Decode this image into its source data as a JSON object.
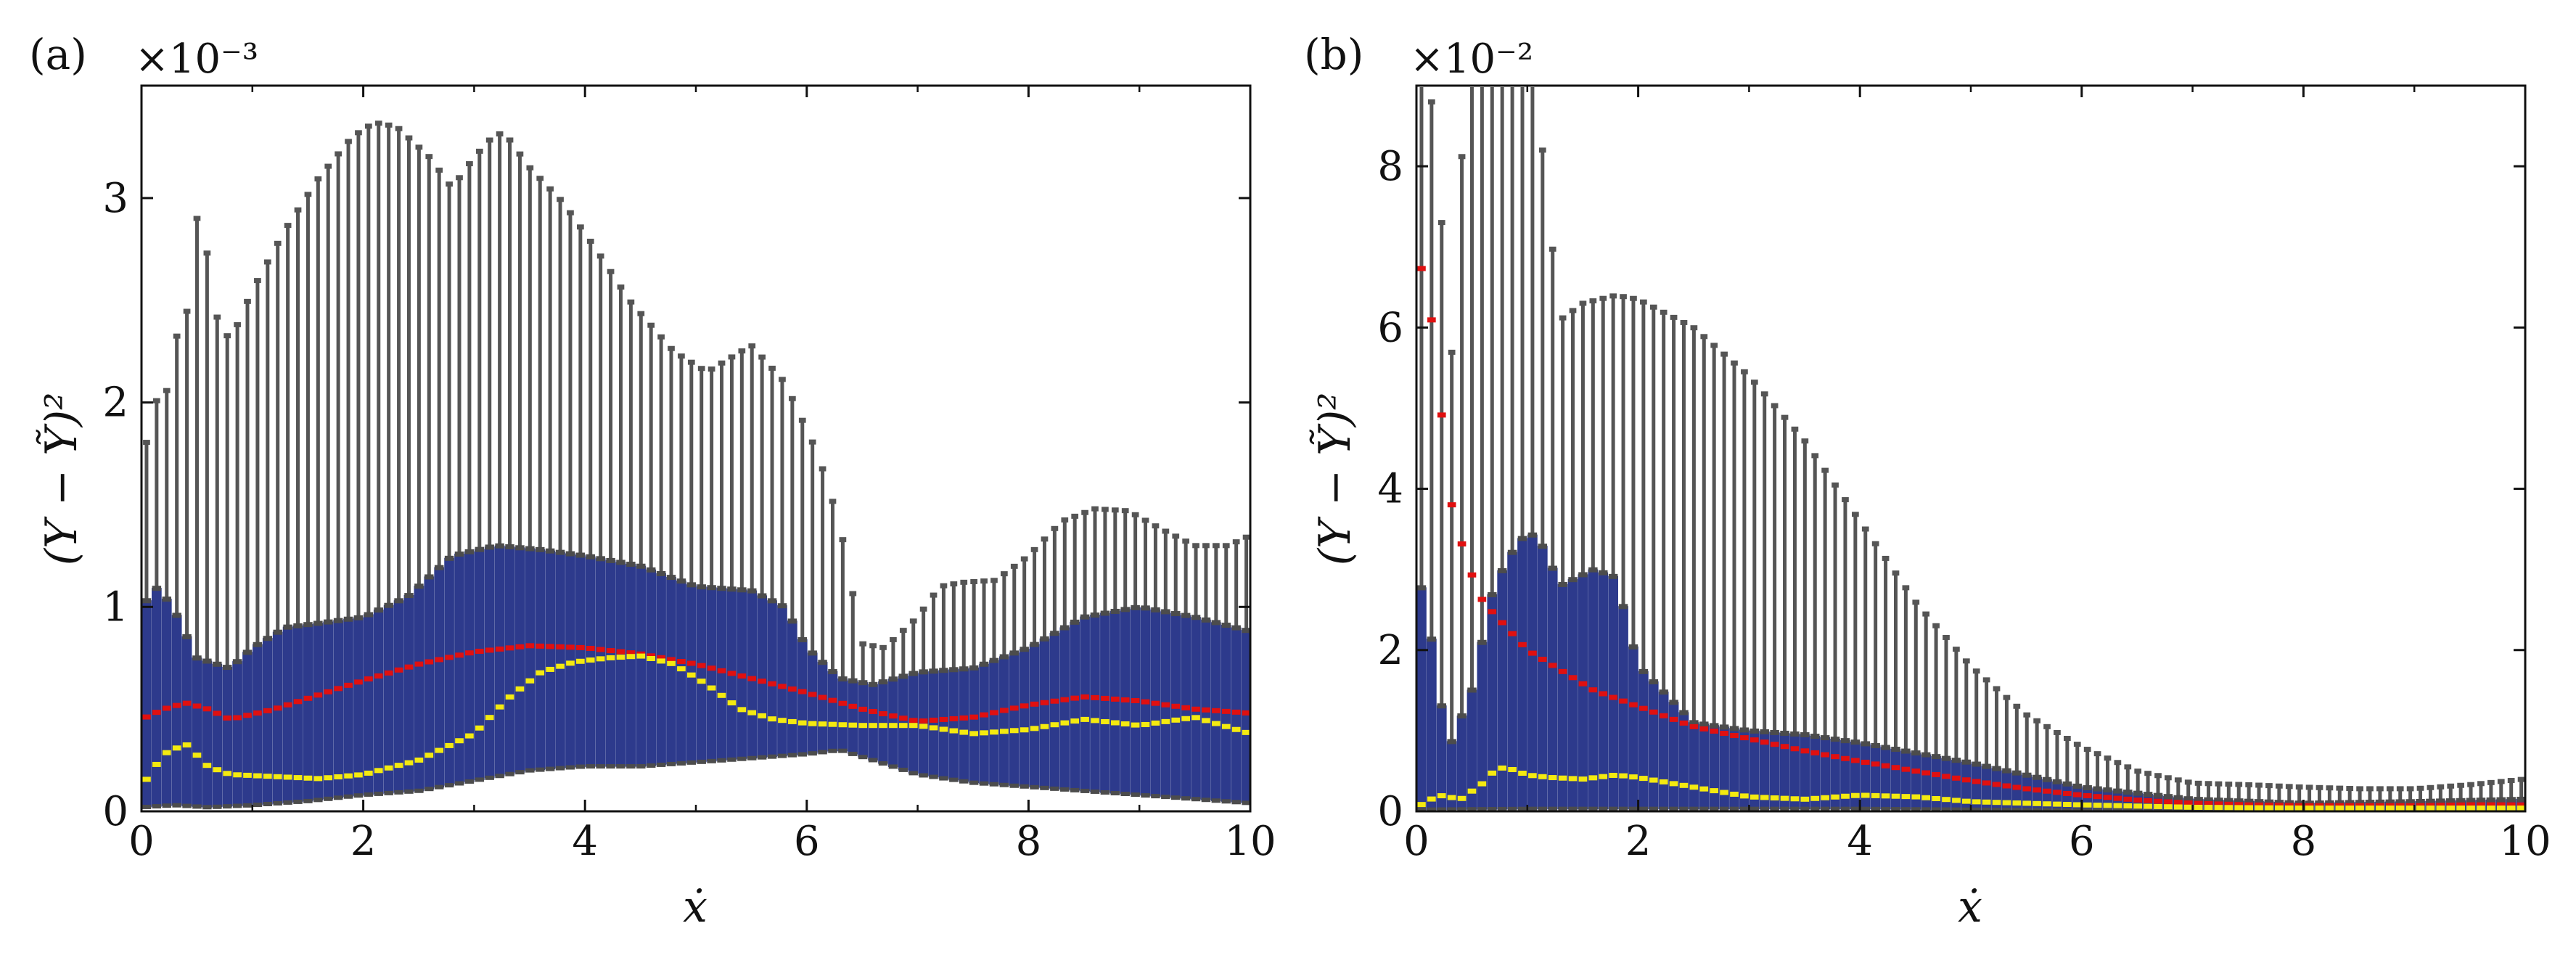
{
  "chart_data": [
    {
      "type": "boxplot",
      "panel_label": "(a)",
      "sci_multiplier": "×10⁻³",
      "xlabel": "ẋ",
      "ylabel": "(Y − Ỹ)²",
      "xlim": [
        0,
        10
      ],
      "ylim": [
        0,
        3.55
      ],
      "xticks": [
        0,
        2,
        4,
        6,
        8,
        10
      ],
      "yticks": [
        0,
        1,
        2,
        3
      ],
      "xtick_labels": [
        "0",
        "2",
        "4",
        "6",
        "8",
        "10"
      ],
      "ytick_labels": [
        "0",
        "1",
        "2",
        "3"
      ],
      "n_bins": 110,
      "x_step": 0.091,
      "series": [
        {
          "name": "whisker_top",
          "color": "#555555",
          "knots_x": [
            0,
            0.05,
            0.1,
            0.18,
            0.3,
            0.45,
            0.5,
            0.55,
            0.65,
            0.8,
            1.0,
            1.3,
            1.6,
            1.9,
            2.1,
            2.3,
            2.6,
            2.8,
            3.0,
            3.2,
            3.3,
            3.5,
            3.8,
            4.1,
            4.4,
            4.8,
            5.1,
            5.5,
            5.8,
            6.1,
            6.3,
            6.5,
            6.7,
            7.0,
            7.2,
            7.4,
            7.7,
            8.0,
            8.3,
            8.6,
            8.9,
            9.2,
            9.5,
            9.8,
            10.0
          ],
          "knots_y": [
            1.35,
            1.85,
            2.1,
            1.9,
            2.3,
            2.5,
            2.9,
            2.93,
            2.45,
            2.3,
            2.55,
            2.85,
            3.1,
            3.3,
            3.37,
            3.35,
            3.2,
            3.05,
            3.2,
            3.32,
            3.3,
            3.15,
            2.98,
            2.75,
            2.5,
            2.25,
            2.15,
            2.28,
            2.1,
            1.75,
            1.4,
            0.82,
            0.8,
            0.95,
            1.1,
            1.12,
            1.13,
            1.25,
            1.42,
            1.48,
            1.47,
            1.38,
            1.3,
            1.3,
            1.35
          ]
        },
        {
          "name": "q3",
          "color": "#555555",
          "knots_x": [
            0,
            0.15,
            0.3,
            0.5,
            0.8,
            1.0,
            1.3,
            1.6,
            2.0,
            2.4,
            2.8,
            3.2,
            3.6,
            4.0,
            4.5,
            5.0,
            5.5,
            5.8,
            6.0,
            6.3,
            6.6,
            6.8,
            7.0,
            7.5,
            8.0,
            8.5,
            9.0,
            9.5,
            10.0
          ],
          "knots_y": [
            1.0,
            1.1,
            0.98,
            0.75,
            0.7,
            0.8,
            0.9,
            0.92,
            0.95,
            1.05,
            1.25,
            1.3,
            1.28,
            1.25,
            1.2,
            1.1,
            1.08,
            1.0,
            0.8,
            0.65,
            0.62,
            0.65,
            0.68,
            0.7,
            0.8,
            0.95,
            1.0,
            0.95,
            0.88
          ]
        },
        {
          "name": "q1",
          "color": "#555555",
          "knots_x": [
            0,
            0.3,
            0.6,
            1.0,
            1.5,
            2.0,
            2.5,
            3.0,
            3.5,
            4.0,
            4.5,
            5.0,
            5.5,
            6.0,
            6.3,
            6.6,
            7.0,
            7.5,
            8.0,
            8.5,
            9.0,
            9.5,
            10.0
          ],
          "knots_y": [
            0.02,
            0.03,
            0.02,
            0.03,
            0.05,
            0.08,
            0.1,
            0.15,
            0.2,
            0.22,
            0.22,
            0.24,
            0.26,
            0.28,
            0.3,
            0.25,
            0.18,
            0.14,
            0.12,
            0.1,
            0.08,
            0.06,
            0.04
          ]
        },
        {
          "name": "mean",
          "color": "#e01010",
          "knots_x": [
            0,
            0.2,
            0.4,
            0.6,
            0.8,
            1.2,
            1.6,
            2.0,
            2.5,
            3.0,
            3.5,
            4.0,
            4.5,
            5.0,
            5.5,
            6.0,
            6.5,
            7.0,
            7.5,
            8.0,
            8.5,
            9.0,
            9.5,
            10.0
          ],
          "knots_y": [
            0.45,
            0.5,
            0.53,
            0.5,
            0.45,
            0.5,
            0.57,
            0.64,
            0.72,
            0.78,
            0.81,
            0.8,
            0.77,
            0.72,
            0.65,
            0.58,
            0.5,
            0.44,
            0.46,
            0.52,
            0.56,
            0.54,
            0.5,
            0.48
          ]
        },
        {
          "name": "median",
          "color": "#f4ea10",
          "knots_x": [
            0,
            0.2,
            0.4,
            0.6,
            0.8,
            1.2,
            1.6,
            2.0,
            2.5,
            3.0,
            3.3,
            3.6,
            3.9,
            4.2,
            4.5,
            4.8,
            5.1,
            5.4,
            5.7,
            6.0,
            6.5,
            7.0,
            7.5,
            8.0,
            8.5,
            9.0,
            9.5,
            10.0
          ],
          "knots_y": [
            0.12,
            0.28,
            0.33,
            0.22,
            0.18,
            0.17,
            0.16,
            0.18,
            0.25,
            0.38,
            0.55,
            0.68,
            0.73,
            0.75,
            0.76,
            0.72,
            0.62,
            0.5,
            0.45,
            0.43,
            0.42,
            0.42,
            0.38,
            0.4,
            0.45,
            0.42,
            0.46,
            0.38
          ]
        }
      ]
    },
    {
      "type": "boxplot",
      "panel_label": "(b)",
      "sci_multiplier": "×10⁻²",
      "xlabel": "ẋ",
      "ylabel": "(Y − Ỹ)²",
      "xlim": [
        0,
        10
      ],
      "ylim": [
        0,
        9.0
      ],
      "xticks": [
        0,
        2,
        4,
        6,
        8,
        10
      ],
      "yticks": [
        0,
        2,
        4,
        6,
        8
      ],
      "xtick_labels": [
        "0",
        "2",
        "4",
        "6",
        "8",
        "10"
      ],
      "ytick_labels": [
        "0",
        "2",
        "4",
        "6",
        "8"
      ],
      "n_bins": 110,
      "x_step": 0.091,
      "series": [
        {
          "name": "whisker_top",
          "color": "#555555",
          "knots_x": [
            0,
            0.1,
            0.2,
            0.3,
            0.45,
            0.6,
            0.8,
            1.0,
            1.1,
            1.2,
            1.25,
            1.3,
            1.5,
            1.8,
            2.0,
            2.5,
            3.0,
            3.5,
            4.0,
            4.5,
            5.0,
            5.5,
            6.0,
            6.5,
            7.0,
            7.5,
            8.0,
            8.5,
            9.0,
            9.5,
            10.0
          ],
          "knots_y": [
            9.2,
            9.2,
            8.1,
            5.2,
            9.2,
            9.2,
            9.2,
            9.2,
            8.8,
            7.2,
            6.8,
            6.1,
            6.3,
            6.4,
            6.35,
            6.0,
            5.4,
            4.6,
            3.6,
            2.6,
            1.8,
            1.2,
            0.8,
            0.5,
            0.35,
            0.33,
            0.3,
            0.28,
            0.28,
            0.33,
            0.4
          ]
        },
        {
          "name": "q3",
          "color": "#555555",
          "knots_x": [
            0,
            0.1,
            0.2,
            0.3,
            0.5,
            0.7,
            0.9,
            1.0,
            1.1,
            1.3,
            1.6,
            1.8,
            2.0,
            2.5,
            3.0,
            3.5,
            4.0,
            5.0,
            6.0,
            7.0,
            8.0,
            9.0,
            10.0
          ],
          "knots_y": [
            3.0,
            2.5,
            1.5,
            0.8,
            1.5,
            2.8,
            3.3,
            3.45,
            3.4,
            2.8,
            3.0,
            2.9,
            1.8,
            1.1,
            1.0,
            0.95,
            0.85,
            0.6,
            0.3,
            0.15,
            0.1,
            0.12,
            0.15
          ]
        },
        {
          "name": "q1",
          "color": "#555555",
          "knots_x": [
            0,
            1,
            2,
            3,
            4,
            5,
            6,
            7,
            8,
            9,
            10
          ],
          "knots_y": [
            0.02,
            0.03,
            0.03,
            0.03,
            0.03,
            0.02,
            0.01,
            0.01,
            0.01,
            0.01,
            0.01
          ]
        },
        {
          "name": "mean",
          "color": "#e01010",
          "knots_x": [
            0,
            0.15,
            0.3,
            0.45,
            0.6,
            0.8,
            1.0,
            1.3,
            1.6,
            2.0,
            2.5,
            3.0,
            3.5,
            4.0,
            4.5,
            5.0,
            5.5,
            6.0,
            6.5,
            7.0,
            7.5,
            8.0,
            8.5,
            9.0,
            9.5,
            10.0
          ],
          "knots_y": [
            7.05,
            6.0,
            3.9,
            3.1,
            2.6,
            2.3,
            2.0,
            1.75,
            1.5,
            1.3,
            1.05,
            0.9,
            0.75,
            0.62,
            0.5,
            0.38,
            0.28,
            0.2,
            0.14,
            0.1,
            0.08,
            0.07,
            0.07,
            0.07,
            0.08,
            0.08
          ]
        },
        {
          "name": "median",
          "color": "#f4ea10",
          "knots_x": [
            0,
            0.2,
            0.4,
            0.6,
            0.7,
            0.8,
            1.0,
            1.2,
            1.5,
            1.8,
            2.0,
            2.5,
            3.0,
            3.5,
            4.0,
            4.5,
            5.0,
            6.0,
            7.0,
            8.0,
            9.0,
            10.0
          ],
          "knots_y": [
            0.05,
            0.2,
            0.15,
            0.35,
            0.5,
            0.55,
            0.45,
            0.42,
            0.4,
            0.45,
            0.42,
            0.3,
            0.18,
            0.15,
            0.2,
            0.18,
            0.12,
            0.08,
            0.05,
            0.04,
            0.04,
            0.04
          ]
        }
      ]
    }
  ]
}
